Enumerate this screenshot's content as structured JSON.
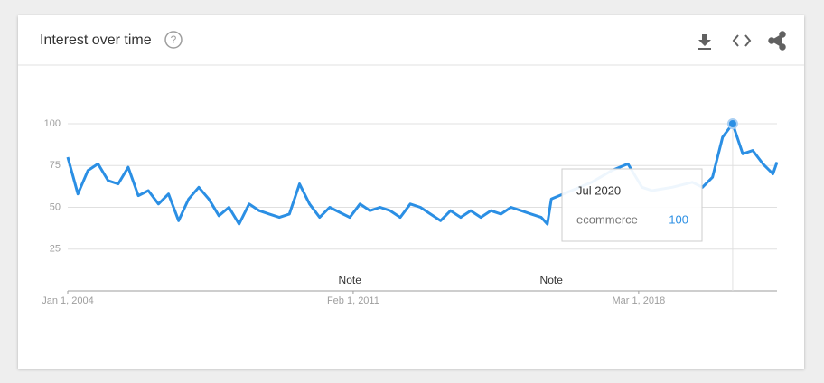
{
  "chart_data": {
    "type": "line",
    "title": "Interest over time",
    "x": [
      2004.0,
      2004.25,
      2004.5,
      2004.75,
      2005.0,
      2005.25,
      2005.5,
      2005.75,
      2006.0,
      2006.25,
      2006.5,
      2006.75,
      2007.0,
      2007.25,
      2007.5,
      2007.75,
      2008.0,
      2008.25,
      2008.5,
      2008.75,
      2009.0,
      2009.25,
      2009.5,
      2009.75,
      2010.0,
      2010.25,
      2010.5,
      2010.75,
      2011.0,
      2011.25,
      2011.5,
      2011.75,
      2012.0,
      2012.25,
      2012.5,
      2012.75,
      2013.0,
      2013.25,
      2013.5,
      2013.75,
      2014.0,
      2014.25,
      2014.5,
      2014.75,
      2015.0,
      2015.25,
      2015.5,
      2015.75,
      2015.9,
      2016.0,
      2016.5,
      2017.0,
      2017.5,
      2017.9,
      2018.25,
      2018.5,
      2019.0,
      2019.5,
      2019.75,
      2020.0,
      2020.25,
      2020.5,
      2020.75,
      2021.0,
      2021.25,
      2021.5,
      2021.6
    ],
    "series": [
      {
        "name": "ecommerce",
        "color": "#2b8fe4",
        "values": [
          80,
          58,
          72,
          76,
          66,
          64,
          74,
          57,
          60,
          52,
          58,
          42,
          55,
          62,
          55,
          45,
          50,
          40,
          52,
          48,
          46,
          44,
          46,
          64,
          52,
          44,
          50,
          47,
          44,
          52,
          48,
          50,
          48,
          44,
          52,
          50,
          46,
          42,
          48,
          44,
          48,
          44,
          48,
          46,
          50,
          48,
          46,
          44,
          40,
          55,
          60,
          65,
          72,
          76,
          62,
          60,
          62,
          65,
          62,
          68,
          92,
          100,
          82,
          84,
          76,
          70,
          77
        ]
      }
    ],
    "xlim": [
      2004.0,
      2021.6
    ],
    "xticks": [
      {
        "value": 2004.0,
        "label": "Jan 1, 2004"
      },
      {
        "value": 2011.083,
        "label": "Feb 1, 2011"
      },
      {
        "value": 2018.167,
        "label": "Mar 1, 2018"
      }
    ],
    "ylim": [
      0,
      100
    ],
    "yticks": [
      25,
      50,
      75,
      100
    ],
    "grid": true,
    "annotations": [
      {
        "text": "Note",
        "x": 2011.0
      },
      {
        "text": "Note",
        "x": 2016.0
      }
    ],
    "tooltip": {
      "label": "Jul 2020",
      "index": 61
    }
  }
}
